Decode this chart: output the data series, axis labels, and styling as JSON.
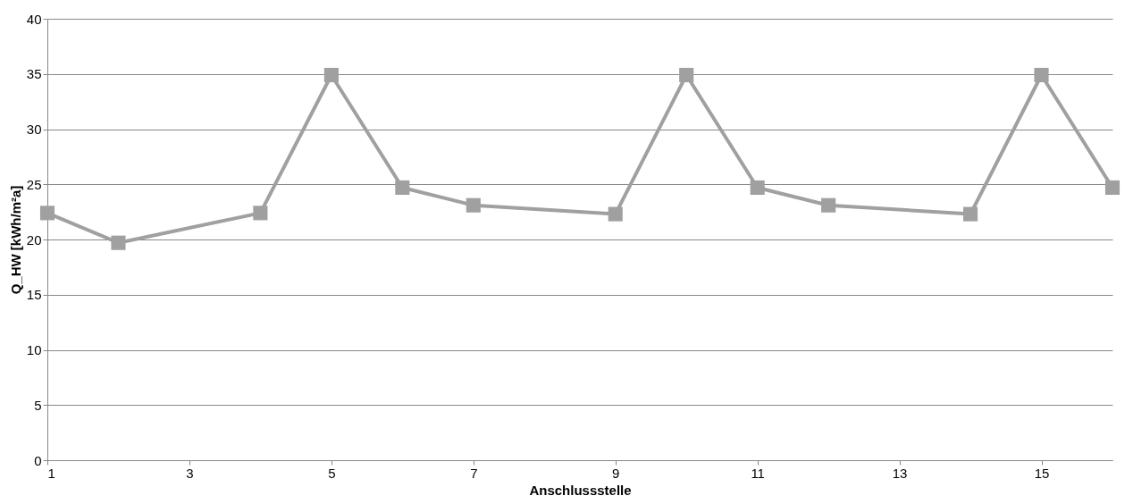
{
  "chart_data": {
    "type": "line",
    "xlabel": "Anschlussstelle",
    "ylabel": "Q_HW [kWh/m²a]",
    "x": [
      1,
      2,
      4,
      5,
      6,
      7,
      9,
      10,
      11,
      12,
      14,
      15,
      16
    ],
    "series": [
      {
        "color": "#a0a0a0",
        "values": [
          22.4,
          19.7,
          22.4,
          34.9,
          24.7,
          23.1,
          22.3,
          34.9,
          24.7,
          23.1,
          22.3,
          34.9,
          24.7
        ]
      }
    ],
    "xlim": [
      1,
      16
    ],
    "xticks": [
      1,
      3,
      5,
      7,
      9,
      11,
      13,
      15
    ],
    "ylim": [
      0,
      40
    ],
    "yticks": [
      0,
      5,
      10,
      15,
      20,
      25,
      30,
      35,
      40
    ],
    "grid": "y",
    "marker": "square",
    "line_style": "solid"
  }
}
